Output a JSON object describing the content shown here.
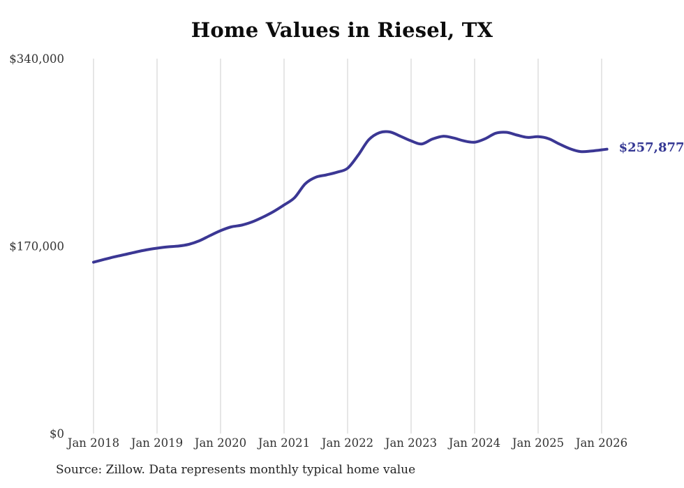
{
  "colors": {
    "line": "#3b3794",
    "end_label": "#343793",
    "grid": "#cccccc",
    "axis_text": "#333333",
    "title_text": "#0d0d0d",
    "source_text": "#222222",
    "background": "#ffffff"
  },
  "chart_data": {
    "type": "line",
    "title": "Home Values in Riesel, TX",
    "series_name": "Monthly typical home value",
    "source": "Source: Zillow. Data represents monthly typical home value",
    "final_label": "$257,877",
    "final_value": 257877,
    "xlabel": "",
    "ylabel": "",
    "ylim": [
      0,
      340000
    ],
    "grid": "vertical-only",
    "legend": "none",
    "y_ticks": [
      {
        "label": "$0",
        "value": 0
      },
      {
        "label": "$170,000",
        "value": 170000
      },
      {
        "label": "$340,000",
        "value": 340000
      }
    ],
    "x_ticks": [
      {
        "label": "Jan 2018",
        "month": "2018-01"
      },
      {
        "label": "Jan 2019",
        "month": "2019-01"
      },
      {
        "label": "Jan 2020",
        "month": "2020-01"
      },
      {
        "label": "Jan 2021",
        "month": "2021-01"
      },
      {
        "label": "Jan 2022",
        "month": "2022-01"
      },
      {
        "label": "Jan 2023",
        "month": "2023-01"
      },
      {
        "label": "Jan 2024",
        "month": "2024-01"
      },
      {
        "label": "Jan 2025",
        "month": "2025-01"
      },
      {
        "label": "Jan 2026",
        "month": "2026-01"
      }
    ],
    "x": [
      "2018-01",
      "2018-03",
      "2018-05",
      "2018-07",
      "2018-09",
      "2018-11",
      "2019-01",
      "2019-03",
      "2019-05",
      "2019-07",
      "2019-09",
      "2019-11",
      "2020-01",
      "2020-03",
      "2020-05",
      "2020-07",
      "2020-09",
      "2020-11",
      "2021-01",
      "2021-03",
      "2021-05",
      "2021-07",
      "2021-09",
      "2021-11",
      "2022-01",
      "2022-03",
      "2022-05",
      "2022-07",
      "2022-09",
      "2022-11",
      "2023-01",
      "2023-03",
      "2023-05",
      "2023-07",
      "2023-09",
      "2023-11",
      "2024-01",
      "2024-03",
      "2024-05",
      "2024-07",
      "2024-09",
      "2024-11",
      "2025-01",
      "2025-03",
      "2025-05",
      "2025-07",
      "2025-09",
      "2025-11",
      "2026-01",
      "2026-02"
    ],
    "values": [
      155400,
      157900,
      160300,
      162400,
      164600,
      166600,
      168100,
      169300,
      170000,
      171600,
      174800,
      179500,
      184000,
      187400,
      189000,
      192000,
      196300,
      201300,
      207300,
      214000,
      226500,
      232500,
      234600,
      237000,
      240600,
      252500,
      266400,
      272800,
      273500,
      269600,
      265400,
      262600,
      267000,
      269600,
      268100,
      265400,
      264200,
      267400,
      272400,
      273200,
      270700,
      268600,
      269200,
      267400,
      262600,
      258300,
      255700,
      256200,
      257300,
      257877
    ]
  }
}
